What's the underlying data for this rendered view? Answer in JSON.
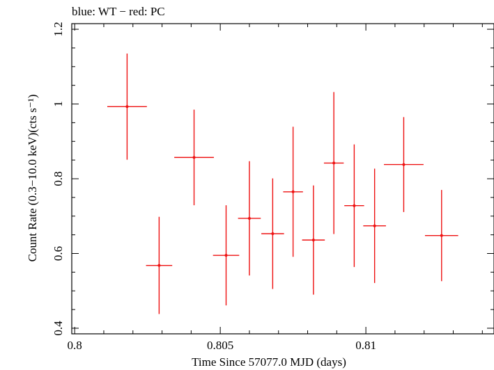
{
  "chart_data": {
    "type": "scatter",
    "title": "blue: WT − red: PC",
    "xlabel": "Time Since 57077.0 MJD (days)",
    "ylabel": "Count Rate (0.3−10.0 keV)(cts s⁻¹)",
    "xlim": [
      0.7999,
      0.8144
    ],
    "ylim": [
      0.385,
      1.215
    ],
    "x_ticks": [
      0.8,
      0.805,
      0.81
    ],
    "x_tick_labels": [
      "0.8",
      "0.805",
      "0.81"
    ],
    "y_ticks": [
      0.4,
      0.6,
      0.8,
      1.0,
      1.2
    ],
    "y_tick_labels": [
      "0.4",
      "0.6",
      "0.8",
      "1",
      "1.2"
    ],
    "grid": false,
    "series": [
      {
        "color": "#ee1111",
        "points": [
          {
            "x": 0.8018,
            "xerr": 0.00068,
            "y": 0.993,
            "yerr": 0.142
          },
          {
            "x": 0.8029,
            "xerr": 0.00045,
            "y": 0.568,
            "yerr": 0.13
          },
          {
            "x": 0.8041,
            "xerr": 0.00068,
            "y": 0.857,
            "yerr": 0.128
          },
          {
            "x": 0.8052,
            "xerr": 0.00045,
            "y": 0.595,
            "yerr": 0.134
          },
          {
            "x": 0.806,
            "xerr": 0.00039,
            "y": 0.694,
            "yerr": 0.153
          },
          {
            "x": 0.8068,
            "xerr": 0.00039,
            "y": 0.653,
            "yerr": 0.148
          },
          {
            "x": 0.8075,
            "xerr": 0.00034,
            "y": 0.765,
            "yerr": 0.174
          },
          {
            "x": 0.8082,
            "xerr": 0.00039,
            "y": 0.636,
            "yerr": 0.146
          },
          {
            "x": 0.8089,
            "xerr": 0.00034,
            "y": 0.842,
            "yerr": 0.19
          },
          {
            "x": 0.8096,
            "xerr": 0.00034,
            "y": 0.728,
            "yerr": 0.164
          },
          {
            "x": 0.8103,
            "xerr": 0.00039,
            "y": 0.674,
            "yerr": 0.153
          },
          {
            "x": 0.8113,
            "xerr": 0.00068,
            "y": 0.838,
            "yerr": 0.127
          },
          {
            "x": 0.8126,
            "xerr": 0.00057,
            "y": 0.648,
            "yerr": 0.122
          }
        ]
      }
    ]
  }
}
